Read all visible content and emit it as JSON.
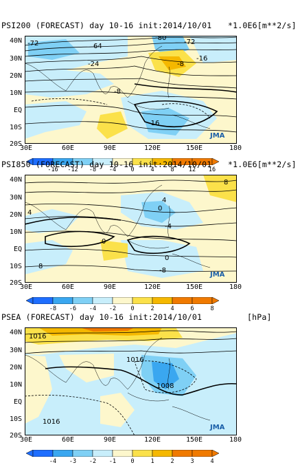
{
  "panels": [
    {
      "title": "PSI200 (FORECAST) day 10-16 init:2014/10/01",
      "units": "*1.0E6[m**2/s]",
      "lat_labels": [
        "40N",
        "30N",
        "20N",
        "10N",
        "EQ",
        "10S",
        "20S"
      ],
      "lon_labels": [
        "30E",
        "60E",
        "90E",
        "120E",
        "150E",
        "180"
      ],
      "colorbar_labels": [
        "-16",
        "-12",
        "-8",
        "-4",
        "0",
        "4",
        "8",
        "12",
        "16"
      ],
      "contour_labels": [
        "-72",
        "-80",
        "-72",
        "64",
        "-24",
        "-16",
        "-8",
        "-8",
        "-16"
      ],
      "logo": "JMA"
    },
    {
      "title": "PSI850 (FORECAST) day 10-16 init:2014/10/01",
      "units": "*1.0E6[m**2/s]",
      "lat_labels": [
        "40N",
        "30N",
        "20N",
        "10N",
        "EQ",
        "10S",
        "20S"
      ],
      "lon_labels": [
        "30E",
        "60E",
        "90E",
        "120E",
        "150E",
        "180"
      ],
      "colorbar_labels": [
        "-8",
        "-6",
        "-4",
        "-2",
        "0",
        "2",
        "4",
        "6",
        "8"
      ],
      "contour_labels": [
        "8",
        "4",
        "0",
        "-4",
        "0",
        "4",
        "0",
        "-8",
        "8"
      ],
      "logo": "JMA"
    },
    {
      "title": "PSEA (FORECAST) day 10-16 init:2014/10/01",
      "units": "[hPa]",
      "lat_labels": [
        "40N",
        "30N",
        "20N",
        "10N",
        "EQ",
        "10S",
        "20S"
      ],
      "lon_labels": [
        "30E",
        "60E",
        "90E",
        "120E",
        "150E",
        "180"
      ],
      "colorbar_labels": [
        "-4",
        "-3",
        "-2",
        "-1",
        "0",
        "1",
        "2",
        "3",
        "4"
      ],
      "contour_labels": [
        "1016",
        "1016",
        "1008",
        "1016"
      ],
      "logo": "JMA"
    }
  ],
  "colors": {
    "neg_strong": "#1e6eff",
    "neg_mid": "#3aa7f0",
    "neg_light": "#7fd0f5",
    "neg_faint": "#c8eefb",
    "pos_faint": "#fdf7cc",
    "pos_light": "#fbe14a",
    "pos_mid": "#f5b800",
    "pos_strong": "#f07a00"
  }
}
